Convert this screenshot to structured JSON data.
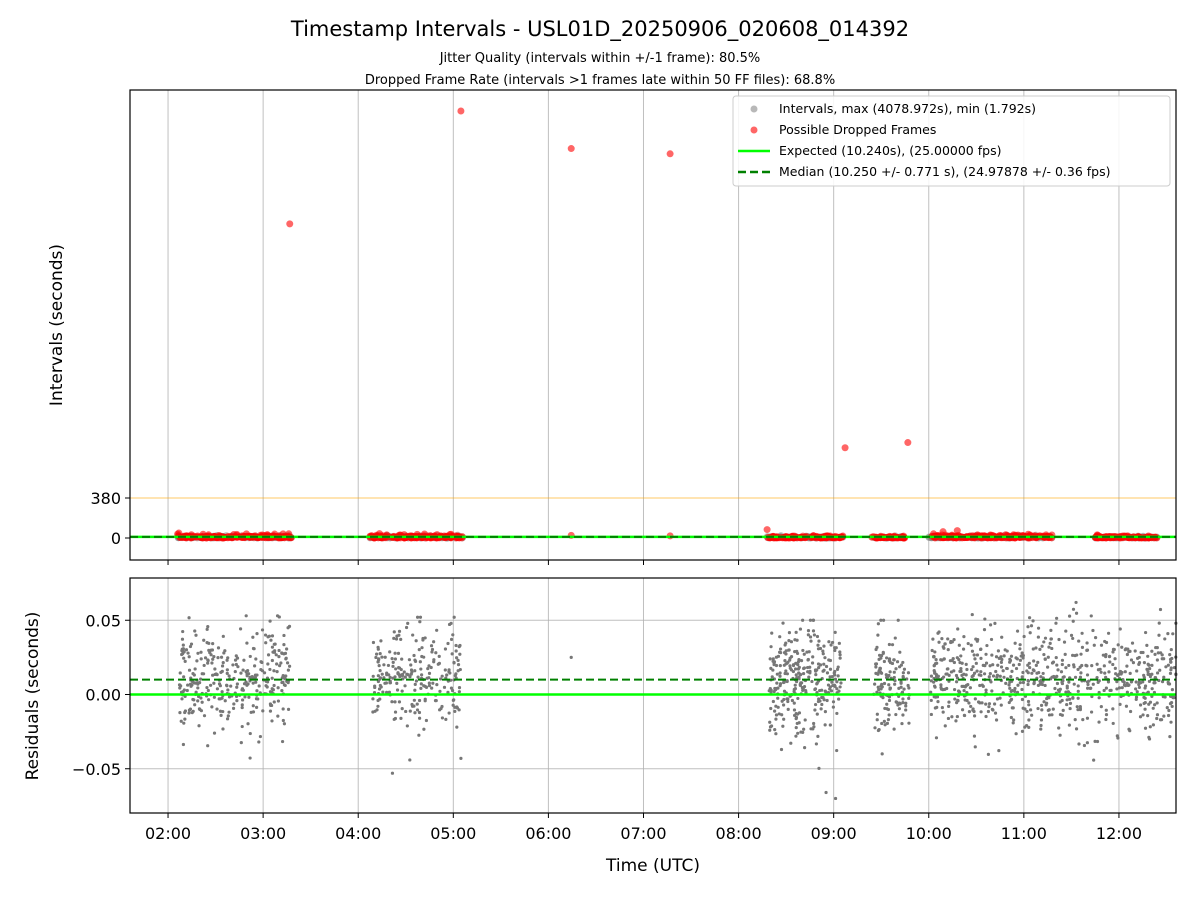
{
  "chart_data": [
    {
      "type": "scatter",
      "title": "Timestamp Intervals - USL01D_20250906_020608_014392",
      "subtitles": [
        "Jitter Quality (intervals within +/-1 frame): 80.5%",
        "Dropped Frame Rate (intervals >1 frames late within 50 FF files): 68.8%"
      ],
      "ylabel": "Intervals (seconds)",
      "xlabel": "",
      "x_unit": "hours UTC",
      "xlim": [
        1.6,
        12.6
      ],
      "ylim": [
        -200,
        4300
      ],
      "yticks": [
        0,
        380
      ],
      "ytick_labels": [
        "0",
        "380"
      ],
      "threshold_line": {
        "y": 380,
        "color": "#ffa500"
      },
      "expected_line": {
        "y": 10.24,
        "color": "#00ff00"
      },
      "median_line": {
        "y": 10.25,
        "color": "#008000"
      },
      "grid": "vertical",
      "legend_position": "top-right",
      "legend": [
        {
          "label": "Intervals, max (4078.972s), min (1.792s)",
          "kind": "dot",
          "color": "#888888"
        },
        {
          "label": "Possible Dropped Frames",
          "kind": "dot",
          "color": "#ff0000"
        },
        {
          "label": "Expected (10.240s), (25.00000 fps)",
          "kind": "line",
          "color": "#00ff00"
        },
        {
          "label": "Median (10.250 +/- 0.771 s), (24.97878 +/- 0.36 fps)",
          "kind": "dashed",
          "color": "#008000"
        }
      ],
      "dropped_frames_outliers": [
        {
          "x": 3.28,
          "y": 3000
        },
        {
          "x": 5.08,
          "y": 4078.972
        },
        {
          "x": 6.24,
          "y": 3720
        },
        {
          "x": 7.28,
          "y": 3670
        },
        {
          "x": 9.12,
          "y": 860
        },
        {
          "x": 9.78,
          "y": 910
        },
        {
          "x": 3.27,
          "y": 40
        },
        {
          "x": 8.3,
          "y": 80
        },
        {
          "x": 10.05,
          "y": 40
        },
        {
          "x": 10.15,
          "y": 60
        },
        {
          "x": 10.3,
          "y": 70
        },
        {
          "x": 4.3,
          "y": 30
        },
        {
          "x": 4.62,
          "y": 35
        },
        {
          "x": 6.24,
          "y": 25
        },
        {
          "x": 7.28,
          "y": 20
        }
      ],
      "dropped_frames_clusters": [
        {
          "x_start": 2.1,
          "x_end": 3.3,
          "y_max": 30
        },
        {
          "x_start": 4.12,
          "x_end": 5.1,
          "y_max": 30
        },
        {
          "x_start": 8.3,
          "x_end": 9.1,
          "y_max": 20
        },
        {
          "x_start": 9.4,
          "x_end": 9.75,
          "y_max": 20
        },
        {
          "x_start": 10.0,
          "x_end": 11.3,
          "y_max": 30
        },
        {
          "x_start": 11.75,
          "x_end": 12.4,
          "y_max": 20
        }
      ]
    },
    {
      "type": "scatter",
      "title": "",
      "xlabel": "Time (UTC)",
      "ylabel": "Residuals (seconds)",
      "x_unit": "hours UTC",
      "xlim": [
        1.6,
        12.6
      ],
      "ylim": [
        -0.08,
        0.08
      ],
      "yticks": [
        -0.05,
        0.0,
        0.05
      ],
      "ytick_labels": [
        "−0.05",
        "0.00",
        "0.05"
      ],
      "xticks": [
        2,
        3,
        4,
        5,
        6,
        7,
        8,
        9,
        10,
        11,
        12
      ],
      "xtick_labels": [
        "02:00",
        "03:00",
        "04:00",
        "05:00",
        "06:00",
        "07:00",
        "08:00",
        "09:00",
        "10:00",
        "11:00",
        "12:00"
      ],
      "expected_line": {
        "y": 0.0,
        "color": "#00ff00"
      },
      "median_line": {
        "y": 0.01,
        "color": "#008000"
      },
      "grid": "both",
      "point_color": "#777777",
      "residual_clusters": [
        {
          "x_start": 2.12,
          "x_end": 3.28,
          "n": 330,
          "y_min": -0.045,
          "y_max": 0.053
        },
        {
          "x_start": 4.15,
          "x_end": 5.08,
          "n": 240,
          "y_min": -0.053,
          "y_max": 0.052
        },
        {
          "x_start": 8.32,
          "x_end": 9.08,
          "n": 300,
          "y_min": -0.07,
          "y_max": 0.05
        },
        {
          "x_start": 9.42,
          "x_end": 9.8,
          "n": 130,
          "y_min": -0.04,
          "y_max": 0.05
        },
        {
          "x_start": 10.02,
          "x_end": 12.6,
          "n": 720,
          "y_min": -0.05,
          "y_max": 0.062
        }
      ],
      "isolated_points": [
        {
          "x": 6.24,
          "y": 0.025
        },
        {
          "x": 4.36,
          "y": -0.053
        },
        {
          "x": 5.08,
          "y": -0.043
        },
        {
          "x": 8.92,
          "y": -0.066
        },
        {
          "x": 9.02,
          "y": -0.07
        }
      ]
    }
  ]
}
